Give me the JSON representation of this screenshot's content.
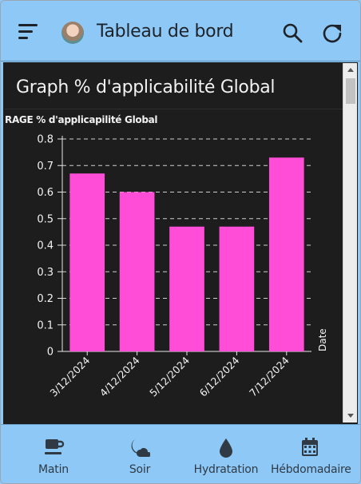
{
  "header": {
    "title": "Tableau de bord",
    "icons": [
      "menu-icon",
      "avatar",
      "search-icon",
      "refresh-icon"
    ]
  },
  "card": {
    "title": "Graph % d'applicabilité Global"
  },
  "chart_data": {
    "type": "bar",
    "title": "",
    "ylabel": "AVERAGE % d'applicapilité Global",
    "ylabel_visible": "RAGE % d'applicapilité Global",
    "xlabel": "Date",
    "categories": [
      "3/12/2024",
      "4/12/2024",
      "5/12/2024",
      "6/12/2024",
      "7/12/2024"
    ],
    "values": [
      0.67,
      0.6,
      0.47,
      0.47,
      0.73
    ],
    "ylim": [
      0,
      0.8
    ],
    "yticks": [
      "0",
      "0.1",
      "0.2",
      "0.3",
      "0.4",
      "0.5",
      "0.6",
      "0.7",
      "0.8"
    ],
    "bar_color": "#ff4dd8",
    "grid": "dashed horizontal"
  },
  "bottom_nav": [
    {
      "label": "Matin",
      "icon": "coffee-icon"
    },
    {
      "label": "Soir",
      "icon": "moon-icon"
    },
    {
      "label": "Hydratation",
      "icon": "water-drop-icon"
    },
    {
      "label": "Hébdomadaire",
      "icon": "calendar-icon"
    }
  ],
  "colors": {
    "header_bg": "#8ec8f6",
    "content_bg": "#1d1d1d",
    "accent": "#ff4dd8"
  }
}
